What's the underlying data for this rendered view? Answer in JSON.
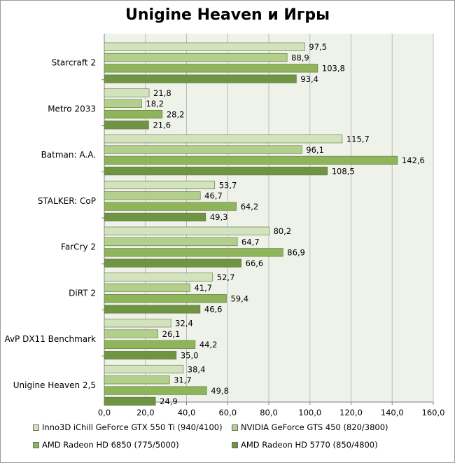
{
  "chart_data": {
    "type": "bar",
    "orientation": "horizontal",
    "title": "Unigine Heaven и Игры",
    "categories": [
      "Starcraft 2",
      "Metro 2033",
      "Batman: A.A.",
      "STALKER: CoP",
      "FarCry 2",
      "DiRT 2",
      "AvP DX11 Benchmark",
      "Unigine Heaven 2,5"
    ],
    "series": [
      {
        "name": "Inno3D iChill GeForce GTX 550 Ti (940/4100)",
        "color": "#d3e3bd",
        "values": [
          97.5,
          21.8,
          115.7,
          53.7,
          80.2,
          52.7,
          32.4,
          38.4
        ],
        "labels": [
          "97,5",
          "21,8",
          "115,7",
          "53,7",
          "80,2",
          "52,7",
          "32,4",
          "38,4"
        ]
      },
      {
        "name": "NVIDIA GeForce GTS 450 (820/3800)",
        "color": "#b3cf8c",
        "values": [
          88.9,
          18.2,
          96.1,
          46.7,
          64.7,
          41.7,
          26.1,
          31.7
        ],
        "labels": [
          "88,9",
          "18,2",
          "96,1",
          "46,7",
          "64,7",
          "41,7",
          "26,1",
          "31,7"
        ]
      },
      {
        "name": "AMD Radeon HD 6850 (775/5000)",
        "color": "#8fb55a",
        "values": [
          103.8,
          28.2,
          142.6,
          64.2,
          86.9,
          59.4,
          44.2,
          49.8
        ],
        "labels": [
          "103,8",
          "28,2",
          "142,6",
          "64,2",
          "86,9",
          "59,4",
          "44,2",
          "49,8"
        ]
      },
      {
        "name": "AMD Radeon HD 5770 (850/4800)",
        "color": "#6f9543",
        "values": [
          93.4,
          21.6,
          108.5,
          49.3,
          66.6,
          46.6,
          35.0,
          24.9
        ],
        "labels": [
          "93,4",
          "21,6",
          "108,5",
          "49,3",
          "66,6",
          "46,6",
          "35,0",
          "24,9"
        ]
      }
    ],
    "xlim": [
      0,
      160
    ],
    "xticks": [
      "0,0",
      "20,0",
      "40,0",
      "60,0",
      "80,0",
      "100,0",
      "120,0",
      "140,0",
      "160,0"
    ],
    "grid": true,
    "plot_background": "#eef2e8",
    "legend": "bottom"
  }
}
